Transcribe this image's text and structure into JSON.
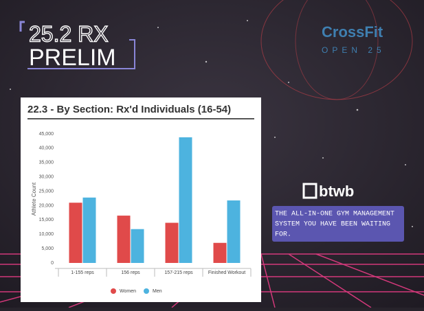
{
  "header": {
    "line1": "25.2 RX",
    "line2": "PRELIM",
    "brand": "CrossFit",
    "brand_sub": "OPEN 25"
  },
  "ad": {
    "logo": "btwb",
    "lines": [
      "THE ALL-IN-ONE GYM MANAGEMENT",
      "SYSTEM YOU HAVE BEEN WAITING",
      "FOR."
    ]
  },
  "chart_data": {
    "type": "bar",
    "title": "22.3 - By Section: Rx'd Individuals (16-54)",
    "y_label": "Athlete Count",
    "categories": [
      "1-155 reps",
      "156 reps",
      "157-215 reps",
      "Finished Workout"
    ],
    "series": [
      {
        "name": "Women",
        "color": "#e04a4a",
        "values": [
          21000,
          16500,
          14000,
          7000
        ]
      },
      {
        "name": "Men",
        "color": "#4db3df",
        "values": [
          22800,
          11800,
          43800,
          21800
        ]
      }
    ],
    "ylim": [
      0,
      45000
    ],
    "yticks": [
      0,
      {
        "value": 5000,
        "label": "5,000"
      },
      {
        "value": 10000,
        "label": "10,000"
      },
      {
        "value": 15000,
        "label": "15,000"
      },
      {
        "value": 20000,
        "label": "20,000"
      },
      {
        "value": 25000,
        "label": "25,000"
      },
      {
        "value": 30000,
        "label": "30,000"
      },
      {
        "value": 35000,
        "label": "35,000"
      },
      {
        "value": 40000,
        "label": "40,000"
      },
      {
        "value": 45000,
        "label": "45,000"
      }
    ],
    "grid": false,
    "legend": "bottom"
  }
}
